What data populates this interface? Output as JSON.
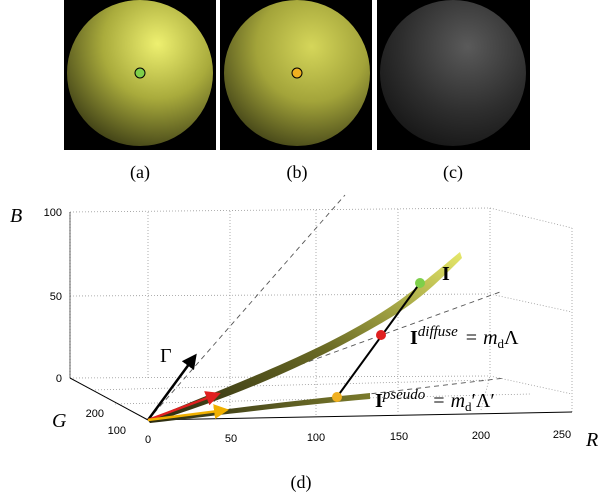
{
  "panels": [
    {
      "caption": "(a)"
    },
    {
      "caption": "(b)"
    },
    {
      "caption": "(c)"
    }
  ],
  "plot": {
    "caption": "(d)",
    "axes": {
      "b": {
        "label": "B",
        "ticks": [
          "100",
          "50",
          "0"
        ]
      },
      "g": {
        "label": "G",
        "ticks": [
          "200",
          "100"
        ]
      },
      "r": {
        "label": "R",
        "ticks": [
          "0",
          "50",
          "100",
          "150",
          "200",
          "250"
        ]
      }
    },
    "annotations": {
      "gamma": "Γ",
      "intensity": "I",
      "diffuse": {
        "symbol": "I",
        "sup": "diffuse",
        "equals": "=",
        "m": "m",
        "sub": "d",
        "tail": "Λ"
      },
      "pseudo": {
        "symbol": "I",
        "sup": "pseudo",
        "equals": "=",
        "m": "m",
        "sub": "d",
        "tail": "′Λ′"
      }
    }
  }
}
